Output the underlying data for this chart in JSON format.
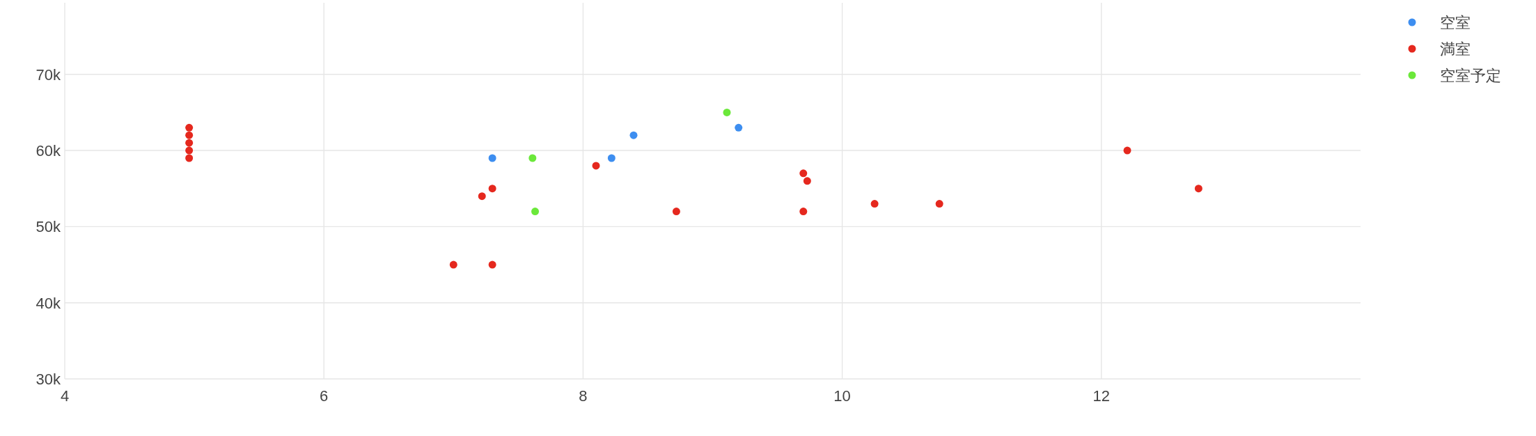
{
  "chart_data": {
    "type": "scatter",
    "marker": "circle",
    "grid": true,
    "legend": "top right",
    "xlim": [
      4,
      14
    ],
    "ylim": [
      30000,
      79400
    ],
    "xticks": [
      4,
      6,
      8,
      10,
      12
    ],
    "yticks": [
      {
        "value": 30000,
        "label": "30k"
      },
      {
        "value": 40000,
        "label": "40k"
      },
      {
        "value": 50000,
        "label": "50k"
      },
      {
        "value": 60000,
        "label": "60k"
      },
      {
        "value": 70000,
        "label": "70k"
      }
    ],
    "series": [
      {
        "name": "空室",
        "color": "#3d8ef0",
        "x": [
          7.3,
          8.22,
          8.39,
          9.2
        ],
        "values": [
          59000,
          59000,
          62000,
          63000
        ]
      },
      {
        "name": "満室",
        "color": "#e5281e",
        "x": [
          4.96,
          4.96,
          4.96,
          4.96,
          4.96,
          7.22,
          7.3,
          7.0,
          7.3,
          8.1,
          8.72,
          9.7,
          9.73,
          9.7,
          10.25,
          10.75,
          12.2,
          12.75
        ],
        "values": [
          63000,
          62000,
          61000,
          60000,
          59000,
          54000,
          55000,
          45000,
          45000,
          58000,
          52000,
          57000,
          56000,
          52000,
          53000,
          53000,
          60000,
          55000
        ]
      },
      {
        "name": "空室予定",
        "color": "#6be83a",
        "x": [
          7.61,
          7.63,
          9.11
        ],
        "values": [
          59000,
          52000,
          65000
        ]
      }
    ]
  }
}
